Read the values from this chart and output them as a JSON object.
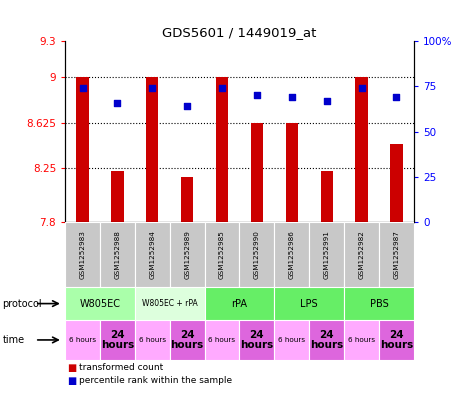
{
  "title": "GDS5601 / 1449019_at",
  "samples": [
    "GSM1252983",
    "GSM1252988",
    "GSM1252984",
    "GSM1252989",
    "GSM1252985",
    "GSM1252990",
    "GSM1252986",
    "GSM1252991",
    "GSM1252982",
    "GSM1252987"
  ],
  "bar_values": [
    9.0,
    8.22,
    9.0,
    8.17,
    9.0,
    8.625,
    8.625,
    8.22,
    9.0,
    8.45
  ],
  "dot_values": [
    74,
    66,
    74,
    64,
    74,
    70,
    69,
    67,
    74,
    69
  ],
  "ylim_left": [
    7.8,
    9.3
  ],
  "ylim_right": [
    0,
    100
  ],
  "yticks_left": [
    7.8,
    8.25,
    8.625,
    9.0,
    9.3
  ],
  "ytick_labels_left": [
    "7.8",
    "8.25",
    "8.625",
    "9",
    "9.3"
  ],
  "yticks_right": [
    0,
    25,
    50,
    75,
    100
  ],
  "ytick_labels_right": [
    "0",
    "25",
    "50",
    "75",
    "100%"
  ],
  "hlines": [
    9.0,
    8.625,
    8.25
  ],
  "bar_color": "#cc0000",
  "dot_color": "#0000cc",
  "bar_width": 0.35,
  "protocols": [
    {
      "label": "W805EC",
      "start": 0,
      "end": 2,
      "color": "#aaffaa"
    },
    {
      "label": "W805EC + rPA",
      "start": 2,
      "end": 4,
      "color": "#ddffdd"
    },
    {
      "label": "rPA",
      "start": 4,
      "end": 6,
      "color": "#66ee66"
    },
    {
      "label": "LPS",
      "start": 6,
      "end": 8,
      "color": "#66ee66"
    },
    {
      "label": "PBS",
      "start": 8,
      "end": 10,
      "color": "#66ee66"
    }
  ],
  "times": [
    "6 hours",
    "24\nhours",
    "6 hours",
    "24\nhours",
    "6 hours",
    "24\nhours",
    "6 hours",
    "24\nhours",
    "6 hours",
    "24\nhours"
  ],
  "time_color_6h": "#ffaaff",
  "time_color_24h": "#dd66dd",
  "legend_items": [
    {
      "color": "#cc0000",
      "label": "transformed count"
    },
    {
      "color": "#0000cc",
      "label": "percentile rank within the sample"
    }
  ]
}
